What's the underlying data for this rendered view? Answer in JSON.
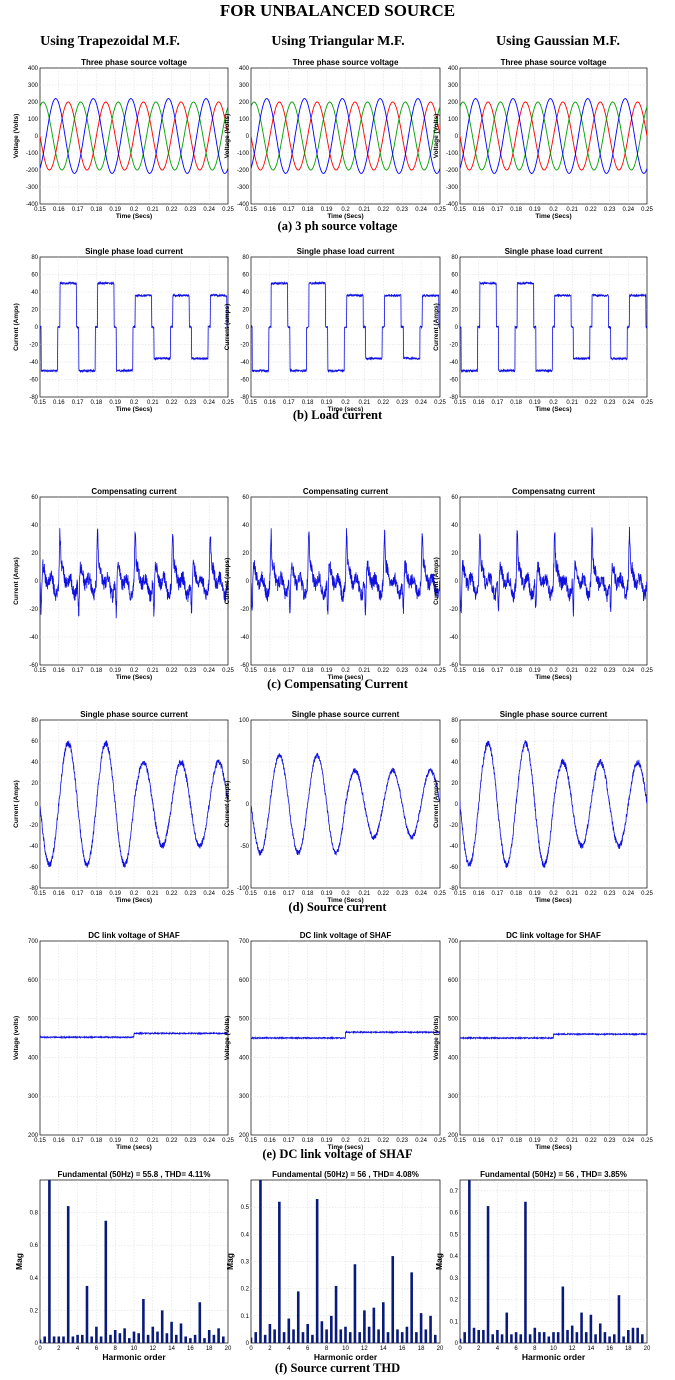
{
  "page": {
    "title": "FOR UNBALANCED SOURCE",
    "columns": [
      "Using Trapezoidal M.F.",
      "Using Triangular M.F.",
      "Using Gaussian M.F."
    ],
    "captions": [
      "(a) 3 ph source voltage",
      "(b) Load current",
      "(c) Compensating Current",
      "(d) Source current",
      "(e) DC link voltage of SHAF",
      "(f) Source current THD"
    ]
  },
  "colors": {
    "phase_a": "#ff0000",
    "phase_b": "#00a000",
    "phase_c": "#0000ff",
    "trace": "#1010e0",
    "bar": "#0a1a7a"
  },
  "chart_data": [
    {
      "id": "a1",
      "type": "line",
      "row": 0,
      "col": 0,
      "title": "Three phase source voltage",
      "xlabel": "Time (Secs)",
      "ylabel": "Voltage (Volts)",
      "xlim": [
        0.15,
        0.25
      ],
      "ylim": [
        -400,
        400
      ],
      "xticks": [
        "0.15",
        "0.16",
        "0.17",
        "0.18",
        "0.19",
        "0.2",
        "0.21",
        "0.22",
        "0.23",
        "0.24",
        "0.25"
      ],
      "yticks": [
        "-400",
        "-300",
        "-200",
        "-100",
        "0",
        "100",
        "200",
        "300",
        "400"
      ],
      "waveform": {
        "kind": "three_phase",
        "amplitude": [
          200,
          200,
          220
        ],
        "frequency_hz": 50
      }
    },
    {
      "id": "a2",
      "type": "line",
      "row": 0,
      "col": 1,
      "title": "Three phase source voltage",
      "xlabel": "Time (Secs)",
      "ylabel": "Voltage (Volts)",
      "xlim": [
        0.15,
        0.25
      ],
      "ylim": [
        -400,
        400
      ],
      "xticks": [
        "0.15",
        "0.16",
        "0.17",
        "0.18",
        "0.19",
        "0.2",
        "0.21",
        "0.22",
        "0.23",
        "0.24",
        "0.25"
      ],
      "yticks": [
        "-400",
        "-300",
        "-200",
        "-100",
        "0",
        "100",
        "200",
        "300",
        "400"
      ],
      "waveform": {
        "kind": "three_phase",
        "amplitude": [
          200,
          200,
          220
        ],
        "frequency_hz": 50
      }
    },
    {
      "id": "a3",
      "type": "line",
      "row": 0,
      "col": 2,
      "title": "Three phase source voltage",
      "xlabel": "Time (Secs)",
      "ylabel": "Voltage (Volts)",
      "xlim": [
        0.15,
        0.25
      ],
      "ylim": [
        -400,
        400
      ],
      "xticks": [
        "0.15",
        "0.16",
        "0.17",
        "0.18",
        "0.19",
        "0.2",
        "0.21",
        "0.22",
        "0.23",
        "0.24",
        "0.25"
      ],
      "yticks": [
        "-400",
        "-300",
        "-200",
        "-100",
        "0",
        "100",
        "200",
        "300",
        "400"
      ],
      "waveform": {
        "kind": "three_phase",
        "amplitude": [
          200,
          200,
          220
        ],
        "frequency_hz": 50
      }
    },
    {
      "id": "b1",
      "type": "line",
      "row": 1,
      "col": 0,
      "title": "Single phase load current",
      "xlabel": "Time (Secs)",
      "ylabel": "Current (Amps)",
      "xlim": [
        0.15,
        0.25
      ],
      "ylim": [
        -80,
        80
      ],
      "xticks": [
        "0.15",
        "0.16",
        "0.17",
        "0.18",
        "0.19",
        "0.2",
        "0.21",
        "0.22",
        "0.23",
        "0.24",
        "0.25"
      ],
      "yticks": [
        "-80",
        "-60",
        "-40",
        "-20",
        "0",
        "20",
        "40",
        "60",
        "80"
      ],
      "waveform": {
        "kind": "square",
        "amplitude_before": 50,
        "amplitude_after": 36,
        "change_at": 0.2,
        "frequency_hz": 50
      }
    },
    {
      "id": "b2",
      "type": "line",
      "row": 1,
      "col": 1,
      "title": "Single phase load current",
      "xlabel": "Time (secs)",
      "ylabel": "Current (amps)",
      "xlim": [
        0.15,
        0.25
      ],
      "ylim": [
        -80,
        80
      ],
      "xticks": [
        "0.15",
        "0.16",
        "0.17",
        "0.18",
        "0.19",
        "0.2",
        "0.21",
        "0.22",
        "0.23",
        "0.24",
        "0.25"
      ],
      "yticks": [
        "-80",
        "-60",
        "-40",
        "-20",
        "0",
        "20",
        "40",
        "60",
        "80"
      ],
      "waveform": {
        "kind": "square",
        "amplitude_before": 50,
        "amplitude_after": 36,
        "change_at": 0.2,
        "frequency_hz": 50
      }
    },
    {
      "id": "b3",
      "type": "line",
      "row": 1,
      "col": 2,
      "title": "Single phase load current",
      "xlabel": "Time (Secs)",
      "ylabel": "Current (Amps)",
      "xlim": [
        0.15,
        0.25
      ],
      "ylim": [
        -80,
        80
      ],
      "xticks": [
        "0.15",
        "0.16",
        "0.17",
        "0.18",
        "0.19",
        "0.2",
        "0.21",
        "0.22",
        "0.23",
        "0.24",
        "0.25"
      ],
      "yticks": [
        "-80",
        "-60",
        "-40",
        "-20",
        "0",
        "20",
        "40",
        "60",
        "80"
      ],
      "waveform": {
        "kind": "square",
        "amplitude_before": 50,
        "amplitude_after": 36,
        "change_at": 0.2,
        "frequency_hz": 50
      }
    },
    {
      "id": "c1",
      "type": "line",
      "row": 2,
      "col": 0,
      "title": "Compensating current",
      "xlabel": "Time (Secs)",
      "ylabel": "Current (Amps)",
      "xlim": [
        0.15,
        0.25
      ],
      "ylim": [
        -60,
        60
      ],
      "xticks": [
        "0.15",
        "0.16",
        "0.17",
        "0.18",
        "0.19",
        "0.2",
        "0.21",
        "0.22",
        "0.23",
        "0.24",
        "0.25"
      ],
      "yticks": [
        "-60",
        "-40",
        "-20",
        "0",
        "20",
        "40",
        "60"
      ],
      "waveform": {
        "kind": "compensating",
        "peak": 28,
        "frequency_hz": 50
      }
    },
    {
      "id": "c2",
      "type": "line",
      "row": 2,
      "col": 1,
      "title": "Compensating current",
      "xlabel": "Time (secs)",
      "ylabel": "Current (amps)",
      "xlim": [
        0.15,
        0.25
      ],
      "ylim": [
        -60,
        60
      ],
      "xticks": [
        "0.15",
        "0.16",
        "0.17",
        "0.18",
        "0.19",
        "0.2",
        "0.21",
        "0.22",
        "0.23",
        "0.24",
        "0.25"
      ],
      "yticks": [
        "-60",
        "-40",
        "-20",
        "0",
        "20",
        "40",
        "60"
      ],
      "waveform": {
        "kind": "compensating",
        "peak": 28,
        "frequency_hz": 50
      }
    },
    {
      "id": "c3",
      "type": "line",
      "row": 2,
      "col": 2,
      "title": "Compensatng current",
      "xlabel": "Time (Secs)",
      "ylabel": "Current (Amps)",
      "xlim": [
        0.15,
        0.25
      ],
      "ylim": [
        -60,
        60
      ],
      "xticks": [
        "0.15",
        "0.16",
        "0.17",
        "0.18",
        "0.19",
        "0.2",
        "0.21",
        "0.22",
        "0.23",
        "0.24",
        "0.25"
      ],
      "yticks": [
        "-60",
        "-40",
        "-20",
        "0",
        "20",
        "40",
        "60"
      ],
      "waveform": {
        "kind": "compensating",
        "peak": 28,
        "frequency_hz": 50
      }
    },
    {
      "id": "d1",
      "type": "line",
      "row": 3,
      "col": 0,
      "title": "Single phase source current",
      "xlabel": "Time (Secs)",
      "ylabel": "Current (Amps)",
      "xlim": [
        0.15,
        0.25
      ],
      "ylim": [
        -80,
        80
      ],
      "xticks": [
        "0.15",
        "0.16",
        "0.17",
        "0.18",
        "0.19",
        "0.2",
        "0.21",
        "0.22",
        "0.23",
        "0.24",
        "0.25"
      ],
      "yticks": [
        "-80",
        "-60",
        "-40",
        "-20",
        "0",
        "20",
        "40",
        "60",
        "80"
      ],
      "waveform": {
        "kind": "sine",
        "amplitude_before": 58,
        "amplitude_after": 40,
        "change_at": 0.2,
        "frequency_hz": 50
      }
    },
    {
      "id": "d2",
      "type": "line",
      "row": 3,
      "col": 1,
      "title": "Single phase source current",
      "xlabel": "Time (Secs)",
      "ylabel": "Current (amps)",
      "xlim": [
        0.15,
        0.25
      ],
      "ylim": [
        -100,
        100
      ],
      "xticks": [
        "0.15",
        "0.16",
        "0.17",
        "0.18",
        "0.19",
        "0.2",
        "0.21",
        "0.22",
        "0.23",
        "0.24",
        "0.25"
      ],
      "yticks": [
        "-100",
        "-50",
        "0",
        "50",
        "100"
      ],
      "waveform": {
        "kind": "sine",
        "amplitude_before": 58,
        "amplitude_after": 40,
        "change_at": 0.2,
        "frequency_hz": 50
      }
    },
    {
      "id": "d3",
      "type": "line",
      "row": 3,
      "col": 2,
      "title": "Single phase source current",
      "xlabel": "Time (Secs)",
      "ylabel": "Current (Amps)",
      "xlim": [
        0.15,
        0.25
      ],
      "ylim": [
        -80,
        80
      ],
      "xticks": [
        "0.15",
        "0.16",
        "0.17",
        "0.18",
        "0.19",
        "0.2",
        "0.21",
        "0.22",
        "0.23",
        "0.24",
        "0.25"
      ],
      "yticks": [
        "-80",
        "-60",
        "-40",
        "-20",
        "0",
        "20",
        "40",
        "60",
        "80"
      ],
      "waveform": {
        "kind": "sine",
        "amplitude_before": 58,
        "amplitude_after": 40,
        "change_at": 0.2,
        "frequency_hz": 50
      }
    },
    {
      "id": "e1",
      "type": "line",
      "row": 4,
      "col": 0,
      "title": "DC link voltage of SHAF",
      "xlabel": "Time (secs)",
      "ylabel": "Voltage (volts)",
      "xlim": [
        0.15,
        0.25
      ],
      "ylim": [
        200,
        700
      ],
      "xticks": [
        "0.15",
        "0.16",
        "0.17",
        "0.18",
        "0.19",
        "0.2",
        "0.21",
        "0.22",
        "0.23",
        "0.24",
        "0.25"
      ],
      "yticks": [
        "200",
        "300",
        "400",
        "500",
        "600",
        "700"
      ],
      "waveform": {
        "kind": "dc",
        "before": 452,
        "after": 462,
        "change_at": 0.2
      }
    },
    {
      "id": "e2",
      "type": "line",
      "row": 4,
      "col": 1,
      "title": "DC link voltage of SHAF",
      "xlabel": "Time (secs)",
      "ylabel": "Voltage (Volts)",
      "xlim": [
        0.15,
        0.25
      ],
      "ylim": [
        200,
        700
      ],
      "xticks": [
        "0.15",
        "0.16",
        "0.17",
        "0.18",
        "0.19",
        "0.2",
        "0.21",
        "0.22",
        "0.23",
        "0.24",
        "0.25"
      ],
      "yticks": [
        "200",
        "300",
        "400",
        "500",
        "600",
        "700"
      ],
      "waveform": {
        "kind": "dc",
        "before": 450,
        "after": 465,
        "change_at": 0.2
      }
    },
    {
      "id": "e3",
      "type": "line",
      "row": 4,
      "col": 2,
      "title": "DC link voltage for SHAF",
      "xlabel": "Time (Secs)",
      "ylabel": "Voltage (Volts)",
      "xlim": [
        0.15,
        0.25
      ],
      "ylim": [
        200,
        700
      ],
      "xticks": [
        "0.15",
        "0.16",
        "0.17",
        "0.18",
        "0.19",
        "0.2",
        "0.21",
        "0.22",
        "0.23",
        "0.24",
        "0.25"
      ],
      "yticks": [
        "200",
        "300",
        "400",
        "500",
        "600",
        "700"
      ],
      "waveform": {
        "kind": "dc",
        "before": 450,
        "after": 460,
        "change_at": 0.2
      }
    },
    {
      "id": "f1",
      "type": "bar",
      "row": 5,
      "col": 0,
      "title": "Fundamental (50Hz) = 55.8 , THD= 4.11%",
      "xlabel": "Harmonic order",
      "ylabel": "Mag",
      "xlim": [
        0,
        20
      ],
      "ylim": [
        0,
        1
      ],
      "xticks": [
        "0",
        "2",
        "4",
        "6",
        "8",
        "10",
        "12",
        "14",
        "16",
        "18",
        "20"
      ],
      "yticks": [
        "0",
        "0.2",
        "0.4",
        "0.6",
        "0.8"
      ],
      "x": [
        0,
        0.5,
        1,
        1.5,
        2,
        2.5,
        3,
        3.5,
        4,
        4.5,
        5,
        5.5,
        6,
        6.5,
        7,
        7.5,
        8,
        8.5,
        9,
        9.5,
        10,
        10.5,
        11,
        11.5,
        12,
        12.5,
        13,
        13.5,
        14,
        14.5,
        15,
        15.5,
        16,
        16.5,
        17,
        17.5,
        18,
        18.5,
        19,
        19.5
      ],
      "values": [
        0.02,
        0.04,
        1.0,
        0.04,
        0.04,
        0.04,
        0.84,
        0.04,
        0.05,
        0.05,
        0.35,
        0.04,
        0.1,
        0.04,
        0.75,
        0.05,
        0.08,
        0.06,
        0.09,
        0.03,
        0.07,
        0.06,
        0.27,
        0.05,
        0.1,
        0.07,
        0.2,
        0.06,
        0.13,
        0.05,
        0.12,
        0.04,
        0.03,
        0.05,
        0.25,
        0.03,
        0.08,
        0.05,
        0.09,
        0.04
      ]
    },
    {
      "id": "f2",
      "type": "bar",
      "row": 5,
      "col": 1,
      "title": "Fundamental (50Hz) = 56 , THD= 4.08%",
      "xlabel": "Harmonic order",
      "ylabel": "Mag",
      "xlim": [
        0,
        20
      ],
      "ylim": [
        0,
        0.6
      ],
      "xticks": [
        "0",
        "2",
        "4",
        "6",
        "8",
        "10",
        "12",
        "14",
        "16",
        "18",
        "20"
      ],
      "yticks": [
        "0",
        "0.1",
        "0.2",
        "0.3",
        "0.4",
        "0.5"
      ],
      "x": [
        0,
        0.5,
        1,
        1.5,
        2,
        2.5,
        3,
        3.5,
        4,
        4.5,
        5,
        5.5,
        6,
        6.5,
        7,
        7.5,
        8,
        8.5,
        9,
        9.5,
        10,
        10.5,
        11,
        11.5,
        12,
        12.5,
        13,
        13.5,
        14,
        14.5,
        15,
        15.5,
        16,
        16.5,
        17,
        17.5,
        18,
        18.5,
        19,
        19.5
      ],
      "values": [
        0.02,
        0.04,
        0.6,
        0.03,
        0.07,
        0.05,
        0.52,
        0.04,
        0.09,
        0.05,
        0.19,
        0.04,
        0.07,
        0.03,
        0.53,
        0.08,
        0.05,
        0.1,
        0.21,
        0.05,
        0.06,
        0.04,
        0.29,
        0.04,
        0.12,
        0.06,
        0.13,
        0.05,
        0.15,
        0.04,
        0.32,
        0.05,
        0.04,
        0.06,
        0.26,
        0.04,
        0.11,
        0.05,
        0.1,
        0.03
      ]
    },
    {
      "id": "f3",
      "type": "bar",
      "row": 5,
      "col": 2,
      "title": "Fundamental (50Hz) = 56 , THD= 3.85%",
      "xlabel": "Harmonic order",
      "ylabel": "Mag",
      "xlim": [
        0,
        20
      ],
      "ylim": [
        0,
        0.75
      ],
      "xticks": [
        "0",
        "2",
        "4",
        "6",
        "8",
        "10",
        "12",
        "14",
        "16",
        "18",
        "20"
      ],
      "yticks": [
        "0",
        "0.1",
        "0.2",
        "0.3",
        "0.4",
        "0.5",
        "0.6",
        "0.7"
      ],
      "x": [
        0,
        0.5,
        1,
        1.5,
        2,
        2.5,
        3,
        3.5,
        4,
        4.5,
        5,
        5.5,
        6,
        6.5,
        7,
        7.5,
        8,
        8.5,
        9,
        9.5,
        10,
        10.5,
        11,
        11.5,
        12,
        12.5,
        13,
        13.5,
        14,
        14.5,
        15,
        15.5,
        16,
        16.5,
        17,
        17.5,
        18,
        18.5,
        19,
        19.5
      ],
      "values": [
        0.02,
        0.05,
        0.75,
        0.07,
        0.06,
        0.06,
        0.63,
        0.04,
        0.06,
        0.04,
        0.14,
        0.04,
        0.05,
        0.04,
        0.65,
        0.04,
        0.07,
        0.05,
        0.05,
        0.03,
        0.05,
        0.05,
        0.26,
        0.06,
        0.08,
        0.05,
        0.14,
        0.05,
        0.13,
        0.04,
        0.09,
        0.05,
        0.03,
        0.04,
        0.22,
        0.03,
        0.06,
        0.07,
        0.07,
        0.04
      ]
    }
  ]
}
